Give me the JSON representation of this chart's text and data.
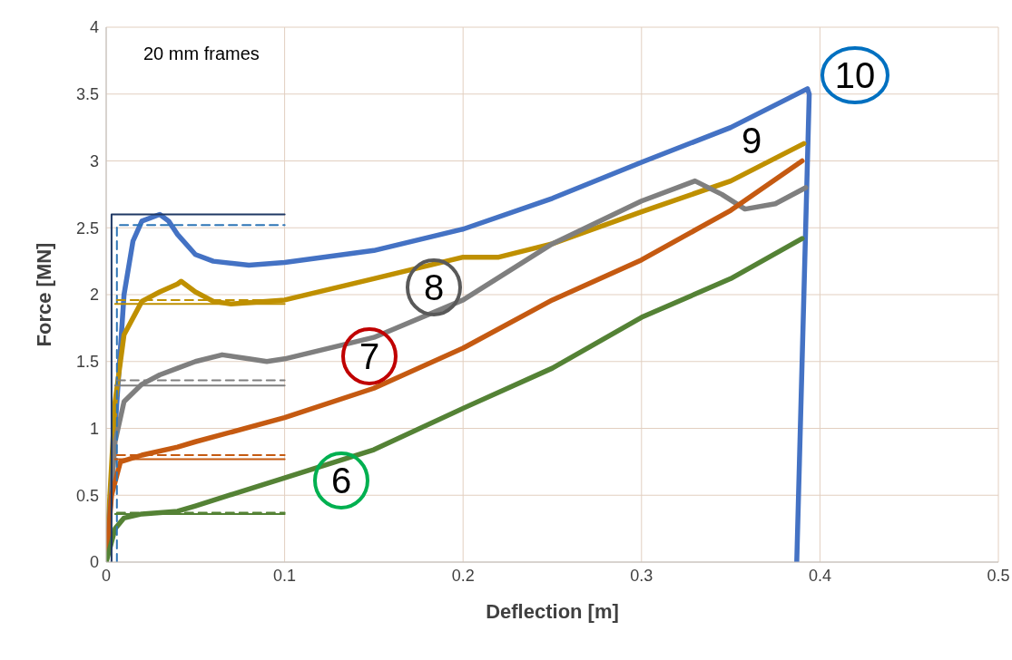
{
  "chart_data": {
    "type": "line",
    "xlabel": "Deflection  [m]",
    "ylabel": "Force [MN]",
    "xlim": [
      0,
      0.5
    ],
    "xticks": [
      0,
      0.1,
      0.2,
      0.3,
      0.4,
      0.5
    ],
    "ylim": [
      0,
      4
    ],
    "yticks": [
      0,
      0.5,
      1,
      1.5,
      2,
      2.5,
      3,
      3.5,
      4
    ],
    "grid": true,
    "marker": "none",
    "series": [
      {
        "color": "#4472c4",
        "x": [
          0,
          0.005,
          0.01,
          0.015,
          0.02,
          0.03,
          0.035,
          0.04,
          0.05,
          0.06,
          0.08,
          0.1,
          0.15,
          0.2,
          0.25,
          0.3,
          0.35,
          0.393,
          0.394,
          0.387
        ],
        "values": [
          0,
          1.0,
          2.0,
          2.4,
          2.55,
          2.6,
          2.55,
          2.45,
          2.3,
          2.25,
          2.22,
          2.24,
          2.33,
          2.49,
          2.72,
          2.99,
          3.25,
          3.54,
          3.5,
          0
        ]
      },
      {
        "color": "#bf9000",
        "x": [
          0,
          0.005,
          0.01,
          0.02,
          0.03,
          0.04,
          0.042,
          0.05,
          0.06,
          0.07,
          0.1,
          0.15,
          0.2,
          0.22,
          0.25,
          0.3,
          0.35,
          0.391
        ],
        "values": [
          0,
          1.2,
          1.7,
          1.95,
          2.02,
          2.08,
          2.1,
          2.02,
          1.95,
          1.93,
          1.96,
          2.12,
          2.28,
          2.28,
          2.38,
          2.62,
          2.85,
          3.13
        ]
      },
      {
        "color": "#7f7f7f",
        "x": [
          0,
          0.005,
          0.01,
          0.02,
          0.03,
          0.04,
          0.05,
          0.065,
          0.08,
          0.09,
          0.1,
          0.15,
          0.2,
          0.25,
          0.3,
          0.33,
          0.345,
          0.358,
          0.375,
          0.392
        ],
        "values": [
          0,
          0.9,
          1.2,
          1.33,
          1.4,
          1.45,
          1.5,
          1.55,
          1.52,
          1.5,
          1.52,
          1.68,
          1.96,
          2.38,
          2.7,
          2.85,
          2.75,
          2.64,
          2.68,
          2.8
        ]
      },
      {
        "color": "#c55a11",
        "x": [
          0,
          0.003,
          0.008,
          0.02,
          0.04,
          0.05,
          0.1,
          0.15,
          0.2,
          0.25,
          0.3,
          0.35,
          0.39
        ],
        "values": [
          0,
          0.5,
          0.75,
          0.8,
          0.86,
          0.9,
          1.08,
          1.3,
          1.6,
          1.96,
          2.26,
          2.63,
          3.0
        ]
      },
      {
        "color": "#548235",
        "x": [
          0,
          0.005,
          0.01,
          0.02,
          0.04,
          0.05,
          0.1,
          0.15,
          0.2,
          0.25,
          0.3,
          0.35,
          0.39
        ],
        "values": [
          0,
          0.25,
          0.33,
          0.36,
          0.38,
          0.42,
          0.63,
          0.84,
          1.15,
          1.45,
          1.83,
          2.12,
          2.42
        ]
      },
      {
        "color": "#1f3864",
        "line_style": "solid",
        "x": [
          0.003,
          0.003,
          0.1
        ],
        "values": [
          0,
          2.6,
          2.6
        ]
      },
      {
        "color": "#2e75b6",
        "line_style": "dashed",
        "x": [
          0.006,
          0.006,
          0.1
        ],
        "values": [
          0,
          2.52,
          2.52
        ]
      },
      {
        "color": "#bf9000",
        "line_style": "solid",
        "x": [
          0.005,
          0.1
        ],
        "values": [
          1.93,
          1.93
        ]
      },
      {
        "color": "#bf9000",
        "line_style": "dashed",
        "x": [
          0.006,
          0.1
        ],
        "values": [
          1.96,
          1.96
        ]
      },
      {
        "color": "#7f7f7f",
        "line_style": "solid",
        "x": [
          0.005,
          0.1
        ],
        "values": [
          1.32,
          1.32
        ]
      },
      {
        "color": "#7f7f7f",
        "line_style": "dashed",
        "x": [
          0.006,
          0.1
        ],
        "values": [
          1.36,
          1.36
        ]
      },
      {
        "color": "#c55a11",
        "line_style": "solid",
        "x": [
          0.005,
          0.1
        ],
        "values": [
          0.77,
          0.77
        ]
      },
      {
        "color": "#c55a11",
        "line_style": "dashed",
        "x": [
          0.006,
          0.1
        ],
        "values": [
          0.8,
          0.8
        ]
      },
      {
        "color": "#548235",
        "line_style": "solid",
        "x": [
          0.005,
          0.1
        ],
        "values": [
          0.36,
          0.36
        ]
      },
      {
        "color": "#548235",
        "line_style": "dashed",
        "x": [
          0.006,
          0.1
        ],
        "values": [
          0.37,
          0.37
        ]
      }
    ],
    "annotations": [
      "20 mm frames",
      "6",
      "7",
      "8",
      "9",
      "10"
    ]
  }
}
